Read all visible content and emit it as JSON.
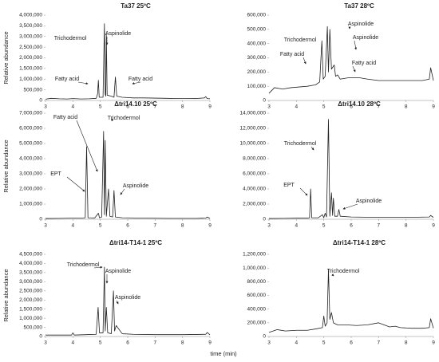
{
  "figure_xlabel": "time (min)",
  "chart_data": [
    {
      "type": "line",
      "title": "Ta37   25ºC",
      "ylabel": "Relative abundance",
      "color": "#222222",
      "x": [
        3,
        3.2,
        3.5,
        3.8,
        4.0,
        4.3,
        4.6,
        4.85,
        4.9,
        4.93,
        4.96,
        5.1,
        5.15,
        5.18,
        5.2,
        5.22,
        5.25,
        5.4,
        5.5,
        5.55,
        5.6,
        5.8,
        6.2,
        6.6,
        7.0,
        7.4,
        7.8,
        8.2,
        8.6,
        8.8,
        8.85,
        8.9,
        9
      ],
      "values": [
        60000,
        100000,
        80000,
        70000,
        90000,
        70000,
        80000,
        100000,
        300000,
        950000,
        150000,
        150000,
        3600000,
        300000,
        200000,
        3100000,
        250000,
        200000,
        150000,
        1100000,
        200000,
        150000,
        120000,
        120000,
        110000,
        100000,
        90000,
        90000,
        100000,
        120000,
        180000,
        90000,
        80000
      ],
      "xlim": [
        3,
        9
      ],
      "xticks": [
        3,
        4,
        5,
        6,
        7,
        8,
        9
      ],
      "ylim": [
        0,
        4000000
      ],
      "yticks": [
        0,
        {
          "value": 500000,
          "label": "500,000"
        },
        {
          "value": 1000000,
          "label": "1,000,000"
        },
        {
          "value": 1500000,
          "label": "1,500,000"
        },
        {
          "value": 2000000,
          "label": "2,000,000"
        },
        {
          "value": 2500000,
          "label": "2,500,000"
        },
        {
          "value": 3000000,
          "label": "3,000,000"
        },
        {
          "value": 3500000,
          "label": "3,500,000"
        },
        {
          "value": 4000000,
          "label": "4,000,000"
        }
      ],
      "annotations": [
        "Trichodermol",
        "Aspinolide",
        "Fatty acid",
        "Fatty acid"
      ]
    },
    {
      "type": "line",
      "title": "Ta37   28ºC",
      "color": "#222222",
      "x": [
        3,
        3.2,
        3.5,
        3.8,
        4.1,
        4.4,
        4.7,
        4.85,
        4.93,
        4.98,
        5.05,
        5.13,
        5.17,
        5.22,
        5.28,
        5.38,
        5.43,
        5.5,
        5.6,
        5.9,
        6.3,
        6.6,
        7.0,
        7.4,
        7.8,
        8.2,
        8.6,
        8.85,
        8.9,
        9
      ],
      "values": [
        50000,
        90000,
        80000,
        90000,
        95000,
        100000,
        110000,
        130000,
        420000,
        150000,
        170000,
        520000,
        200000,
        500000,
        220000,
        250000,
        170000,
        180000,
        150000,
        160000,
        160000,
        150000,
        140000,
        140000,
        140000,
        140000,
        140000,
        150000,
        230000,
        140000
      ],
      "xlim": [
        3,
        9
      ],
      "xticks": [
        3,
        4,
        5,
        6,
        7,
        8,
        9
      ],
      "ylim": [
        0,
        600000
      ],
      "yticks": [
        0,
        {
          "value": 100000,
          "label": "100,000"
        },
        {
          "value": 200000,
          "label": "200,000"
        },
        {
          "value": 300000,
          "label": "300,000"
        },
        {
          "value": 400000,
          "label": "400,000"
        },
        {
          "value": 500000,
          "label": "500,000"
        },
        {
          "value": 600000,
          "label": "600,000"
        }
      ],
      "annotations": [
        "Trichodermol",
        "Aspinolide",
        "Aspinolide",
        "Fatty acid",
        "Fatty acid"
      ]
    },
    {
      "type": "line",
      "title": "Δtri14.10   25ºC",
      "ylabel": "Relative abundance",
      "color": "#222222",
      "x": [
        3,
        3.5,
        4.0,
        4.3,
        4.45,
        4.5,
        4.55,
        4.8,
        4.93,
        4.97,
        5.05,
        5.12,
        5.15,
        5.18,
        5.22,
        5.3,
        5.35,
        5.45,
        5.5,
        5.55,
        5.8,
        6.5,
        7.5,
        8.5,
        8.85,
        8.9,
        9
      ],
      "values": [
        50000,
        60000,
        80000,
        80000,
        100000,
        4800000,
        100000,
        90000,
        400000,
        100000,
        150000,
        5800000,
        300000,
        5200000,
        200000,
        2000000,
        200000,
        150000,
        1900000,
        150000,
        100000,
        80000,
        60000,
        60000,
        80000,
        150000,
        60000
      ],
      "xlim": [
        3,
        9
      ],
      "xticks": [
        3,
        4,
        5,
        6,
        7,
        8,
        9
      ],
      "ylim": [
        0,
        7000000
      ],
      "yticks": [
        0,
        {
          "value": 1000000,
          "label": "1,000,000"
        },
        {
          "value": 2000000,
          "label": "2,000,000"
        },
        {
          "value": 3000000,
          "label": "3,000,000"
        },
        {
          "value": 4000000,
          "label": "4,000,000"
        },
        {
          "value": 5000000,
          "label": "5,000,000"
        },
        {
          "value": 6000000,
          "label": "6,000,000"
        },
        {
          "value": 7000000,
          "label": "7,000,000"
        }
      ],
      "annotations": [
        "Fatty acid",
        "Trichodermol",
        "EPT",
        "Aspinolide"
      ]
    },
    {
      "type": "line",
      "title": "Δtri14.10   28ºC",
      "color": "#222222",
      "x": [
        3,
        3.5,
        4.0,
        4.4,
        4.48,
        4.52,
        4.56,
        4.8,
        4.95,
        5.0,
        5.05,
        5.1,
        5.17,
        5.22,
        5.28,
        5.32,
        5.35,
        5.4,
        5.5,
        5.55,
        5.6,
        6.0,
        7.0,
        8.0,
        8.85,
        8.9,
        9
      ],
      "values": [
        100000,
        120000,
        150000,
        150000,
        200000,
        4000000,
        200000,
        200000,
        600000,
        200000,
        800000,
        300000,
        13200000,
        400000,
        3500000,
        500000,
        2800000,
        400000,
        400000,
        1300000,
        400000,
        300000,
        250000,
        250000,
        300000,
        500000,
        250000
      ],
      "xlim": [
        3,
        9
      ],
      "xticks": [
        3,
        4,
        5,
        6,
        7,
        8,
        9
      ],
      "ylim": [
        0,
        14000000
      ],
      "yticks": [
        0,
        {
          "value": 2000000,
          "label": "2,000,000"
        },
        {
          "value": 4000000,
          "label": "4,000,000"
        },
        {
          "value": 6000000,
          "label": "6,000,000"
        },
        {
          "value": 8000000,
          "label": "8,000,000"
        },
        {
          "value": 10000000,
          "label": "10,000,000"
        },
        {
          "value": 12000000,
          "label": "12,000,000"
        },
        {
          "value": 14000000,
          "label": "14,000,000"
        }
      ],
      "annotations": [
        "Trichodermol",
        "EPT",
        "Aspinolide"
      ]
    },
    {
      "type": "line",
      "title": "Δtri14-T14-1   25ºC",
      "ylabel": "Relative abundance",
      "color": "#222222",
      "x": [
        3,
        3.5,
        3.95,
        4.0,
        4.05,
        4.5,
        4.85,
        4.92,
        4.97,
        5.1,
        5.15,
        5.18,
        5.22,
        5.27,
        5.4,
        5.48,
        5.52,
        5.58,
        5.8,
        6.2,
        7.0,
        8.0,
        8.85,
        8.9,
        9
      ],
      "values": [
        80000,
        80000,
        80000,
        200000,
        80000,
        100000,
        120000,
        1600000,
        200000,
        200000,
        3800000,
        300000,
        1600000,
        200000,
        150000,
        2500000,
        300000,
        600000,
        150000,
        120000,
        100000,
        100000,
        120000,
        220000,
        90000
      ],
      "xlim": [
        3,
        9
      ],
      "xticks": [
        3,
        4,
        5,
        6,
        7,
        8,
        9
      ],
      "ylim": [
        0,
        4500000
      ],
      "yticks": [
        0,
        {
          "value": 500000,
          "label": "500,000"
        },
        {
          "value": 1000000,
          "label": "1,000,000"
        },
        {
          "value": 1500000,
          "label": "1,500,000"
        },
        {
          "value": 2000000,
          "label": "2,000,000"
        },
        {
          "value": 2500000,
          "label": "2,500,000"
        },
        {
          "value": 3000000,
          "label": "3,000,000"
        },
        {
          "value": 3500000,
          "label": "3,500,000"
        },
        {
          "value": 4000000,
          "label": "4,000,000"
        },
        {
          "value": 4500000,
          "label": "4,500,000"
        }
      ],
      "annotations": [
        "Trichodermol",
        "Aspinolide",
        "Aspinolide"
      ]
    },
    {
      "type": "line",
      "title": "Δtri14-T14-1   28ºC",
      "color": "#222222",
      "x": [
        3,
        3.3,
        3.6,
        4.0,
        4.4,
        4.7,
        4.95,
        5.0,
        5.05,
        5.12,
        5.17,
        5.22,
        5.28,
        5.35,
        5.5,
        5.8,
        6.2,
        6.6,
        7.0,
        7.4,
        7.6,
        7.8,
        8.2,
        8.6,
        8.85,
        8.9,
        9
      ],
      "values": [
        60000,
        100000,
        80000,
        90000,
        90000,
        110000,
        130000,
        300000,
        150000,
        200000,
        980000,
        250000,
        350000,
        200000,
        170000,
        170000,
        160000,
        170000,
        200000,
        140000,
        150000,
        130000,
        120000,
        120000,
        130000,
        260000,
        120000
      ],
      "xlim": [
        3,
        9
      ],
      "xticks": [
        3,
        4,
        5,
        6,
        7,
        8,
        9
      ],
      "ylim": [
        0,
        1200000
      ],
      "yticks": [
        0,
        {
          "value": 200000,
          "label": "200,000"
        },
        {
          "value": 400000,
          "label": "400,000"
        },
        {
          "value": 600000,
          "label": "600,000"
        },
        {
          "value": 800000,
          "label": "800,000"
        },
        {
          "value": 1000000,
          "label": "1,000,000"
        },
        {
          "value": 1200000,
          "label": "1,200,000"
        }
      ],
      "annotations": [
        "Trichodermol"
      ]
    }
  ]
}
